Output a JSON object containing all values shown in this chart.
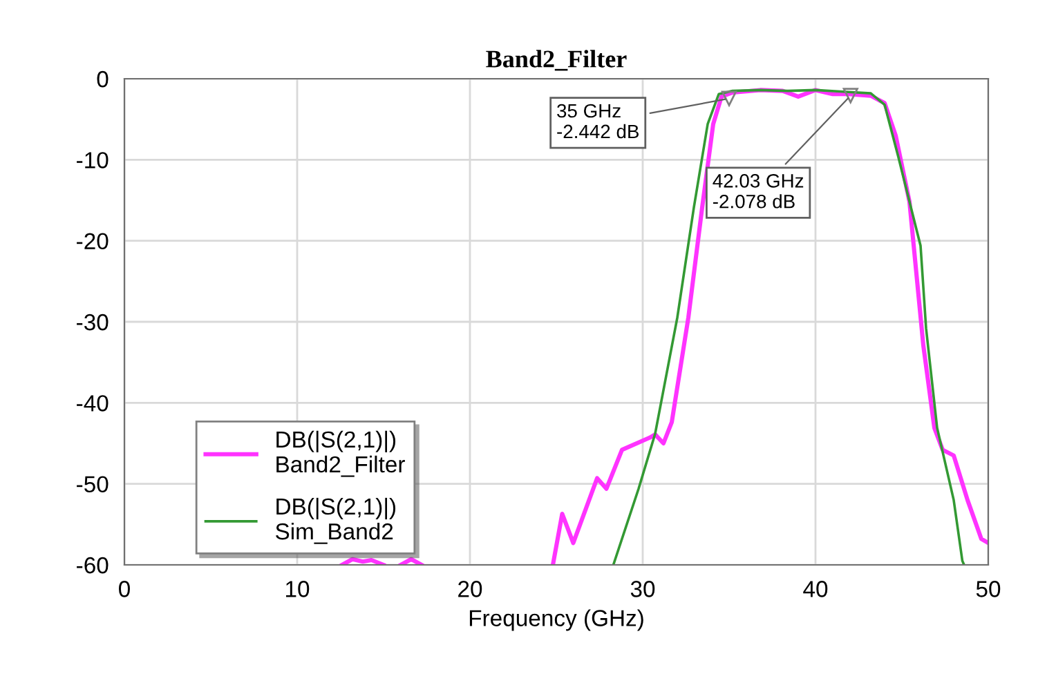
{
  "chart_data": {
    "type": "line",
    "title": "Band2_Filter",
    "xlabel": "Frequency (GHz)",
    "xlim": [
      0,
      50
    ],
    "xticks": [
      0,
      10,
      20,
      30,
      40,
      50
    ],
    "ylim": [
      -60,
      0
    ],
    "yticks": [
      -60,
      -50,
      -40,
      -30,
      -20,
      -10,
      0
    ],
    "grid": true,
    "legend": "bottom left",
    "series": [
      {
        "name": "DB(|S(2,1)|)\nBand2_Filter",
        "color": "#ff33ff",
        "x": [
          12.6,
          13.2,
          13.8,
          14.3,
          15.0,
          15.5,
          16.0,
          16.6,
          17.2,
          20.0,
          24.8,
          25.34,
          25.98,
          27.36,
          27.9,
          28.8,
          30.4,
          30.72,
          31.2,
          31.68,
          32.64,
          33.44,
          34.08,
          34.56,
          35.2,
          36.8,
          38.1,
          39.0,
          40.0,
          41.0,
          41.9,
          43.2,
          44.0,
          44.64,
          45.44,
          46.24,
          46.88,
          47.36,
          48.0,
          48.8,
          49.6,
          50.0
        ],
        "values": [
          -60,
          -59.3,
          -59.6,
          -59.4,
          -60,
          null,
          -60,
          -59.3,
          -60,
          null,
          -60,
          -53.7,
          -57.3,
          -49.3,
          -50.6,
          -45.8,
          -44.3,
          -43.9,
          -45.0,
          -42.4,
          -29.5,
          -15.9,
          -5.6,
          -2.2,
          -1.7,
          -1.4,
          -1.5,
          -2.2,
          -1.4,
          -1.9,
          -1.9,
          -2.1,
          -3.0,
          -7.0,
          -15.2,
          -32.9,
          -43.1,
          -45.8,
          -46.5,
          -52.0,
          -56.8,
          -57.3
        ]
      },
      {
        "name": "DB(|S(2,1)|)\nSim_Band2",
        "color": "#339933",
        "x": [
          28.3,
          29.76,
          30.72,
          32.0,
          32.96,
          33.76,
          34.4,
          35.2,
          36.8,
          38.4,
          40.0,
          41.6,
          43.2,
          44.0,
          44.8,
          45.76,
          46.08,
          46.4,
          47.04,
          48.0,
          48.5,
          48.6
        ],
        "values": [
          -60,
          -50.6,
          -43.8,
          -29.5,
          -15.9,
          -5.6,
          -1.9,
          -1.5,
          -1.4,
          -1.5,
          -1.4,
          -1.6,
          -1.8,
          -3.2,
          -9.7,
          -17.9,
          -20.6,
          -30.8,
          -43.1,
          -52.0,
          -59.5,
          -60
        ]
      }
    ],
    "annotations": [
      {
        "text": "35 GHz\n-2.442 dB",
        "x": 35,
        "y": -2.442
      },
      {
        "text": "42.03 GHz\n-2.078 dB",
        "x": 42.03,
        "y": -2.078
      }
    ]
  }
}
